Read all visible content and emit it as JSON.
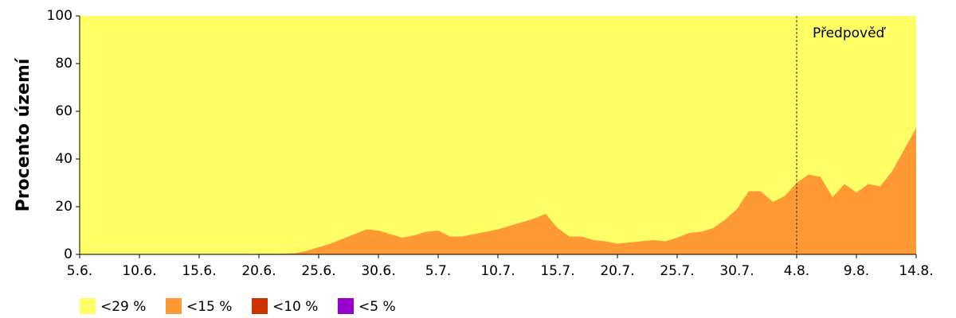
{
  "chart_data": {
    "type": "area",
    "y_label": "Procento území",
    "annotation": "Předpověď",
    "forecast_from": "4.8.",
    "categories": [
      "5.6.",
      null,
      null,
      null,
      null,
      "10.6.",
      null,
      null,
      null,
      null,
      "15.6.",
      null,
      null,
      null,
      null,
      "20.6.",
      null,
      null,
      null,
      null,
      "25.6.",
      null,
      null,
      null,
      null,
      "30.6.",
      null,
      null,
      null,
      null,
      "5.7.",
      null,
      null,
      null,
      null,
      "10.7.",
      null,
      null,
      null,
      null,
      "15.7.",
      null,
      null,
      null,
      null,
      "20.7.",
      null,
      null,
      null,
      null,
      "25.7.",
      null,
      null,
      null,
      null,
      "30.7.",
      null,
      null,
      null,
      null,
      "4.8.",
      null,
      null,
      null,
      null,
      "9.8.",
      null,
      null,
      null,
      null,
      "14.8."
    ],
    "series": [
      {
        "name": "<29 %",
        "color": "#ffff66",
        "values": [
          100,
          100,
          100,
          100,
          100,
          100,
          100,
          100,
          100,
          100,
          100,
          100,
          100,
          100,
          100,
          100,
          100,
          100,
          100,
          100,
          100,
          100,
          100,
          100,
          100,
          100,
          100,
          100,
          100,
          100,
          100,
          100,
          100,
          100,
          100,
          100,
          100,
          100,
          100,
          100,
          100,
          100,
          100,
          100,
          100,
          100,
          100,
          100,
          100,
          100,
          100,
          100,
          100,
          100,
          100,
          100,
          100,
          100,
          100,
          100,
          100,
          100,
          100,
          100,
          100,
          100,
          100,
          100,
          100,
          100,
          100
        ]
      },
      {
        "name": "<15 %",
        "color": "#ff9933",
        "values": [
          0,
          0,
          0,
          0,
          0,
          0,
          0,
          0,
          0,
          0,
          0,
          0,
          0,
          0,
          0,
          0.3,
          0.3,
          0.3,
          0.5,
          1.5,
          3,
          4.5,
          6.5,
          8.5,
          10.5,
          10,
          8.5,
          7,
          8,
          9.5,
          10,
          7.5,
          7.5,
          8.5,
          9.5,
          10.5,
          12,
          13.5,
          15,
          17,
          11,
          7.5,
          7.5,
          6,
          5.5,
          4.5,
          5,
          5.5,
          6,
          5.5,
          7,
          9,
          9.5,
          11,
          14.5,
          19,
          26.5,
          26.5,
          22,
          24.5,
          30,
          33.5,
          32.5,
          24,
          29.5,
          26,
          29.5,
          28.5,
          35,
          44,
          53
        ]
      },
      {
        "name": "<10 %",
        "color": "#cc3300",
        "values": [
          0,
          0,
          0,
          0,
          0,
          0,
          0,
          0,
          0,
          0,
          0,
          0,
          0,
          0,
          0,
          0,
          0,
          0,
          0,
          0,
          0,
          0,
          0,
          0,
          0,
          0,
          0,
          0,
          0,
          0,
          0,
          0,
          0,
          0,
          0,
          0,
          0,
          0,
          0,
          0,
          0,
          0,
          0,
          0,
          0,
          0,
          0,
          0,
          0,
          0,
          0,
          0,
          0,
          0,
          0,
          0,
          0,
          0,
          0,
          0,
          0,
          0,
          0,
          0,
          0,
          0,
          0,
          0,
          0,
          0,
          0
        ]
      },
      {
        "name": "<5 %",
        "color": "#9900cc",
        "values": [
          0,
          0,
          0,
          0,
          0,
          0,
          0,
          0,
          0,
          0,
          0,
          0,
          0,
          0,
          0,
          0,
          0,
          0,
          0,
          0,
          0,
          0,
          0,
          0,
          0,
          0,
          0,
          0,
          0,
          0,
          0,
          0,
          0,
          0,
          0,
          0,
          0,
          0,
          0,
          0,
          0,
          0,
          0,
          0,
          0,
          0,
          0,
          0,
          0,
          0,
          0,
          0,
          0,
          0,
          0,
          0,
          0,
          0,
          0,
          0,
          0,
          0,
          0,
          0,
          0,
          0,
          0,
          0,
          0,
          0,
          0
        ]
      }
    ],
    "ylim": [
      0,
      100
    ],
    "yticks": [
      0,
      20,
      40,
      60,
      80,
      100
    ]
  }
}
